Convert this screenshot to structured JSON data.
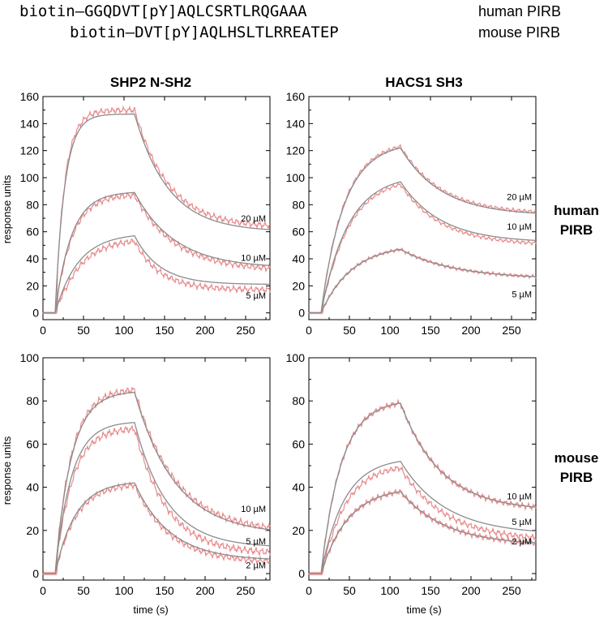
{
  "header": {
    "peptides": [
      {
        "sequence": "biotin–GGQDVT[pY]AQLCSRTLRQGAAA",
        "species": "human PIRB"
      },
      {
        "sequence": "biotin–DVT[pY]AQLHSLTLRREATEP",
        "species": "mouse PIRB"
      }
    ]
  },
  "columns": [
    "SHP2 N-SH2",
    "HACS1 SH3"
  ],
  "rows": [
    {
      "line1": "human",
      "line2": "PIRB"
    },
    {
      "line1": "mouse",
      "line2": "PIRB"
    }
  ],
  "axis_labels": {
    "ylabel": "response units",
    "xlabel": "time (s)"
  },
  "colors": {
    "data": "#e8898b",
    "fit": "#8c8c8c",
    "axis": "#000000"
  },
  "chart_data": [
    {
      "type": "line",
      "panel": "human PIRB / SHP2 N-SH2",
      "ylabel": "response units",
      "xlim": [
        0,
        280
      ],
      "ylim": [
        -5,
        160
      ],
      "xticks": [
        0,
        50,
        100,
        150,
        200,
        250
      ],
      "yticks": [
        0,
        20,
        40,
        60,
        80,
        100,
        120,
        140,
        160
      ],
      "injection_start": 15,
      "injection_end": 113,
      "series": [
        {
          "label": "20 µM",
          "peak": 147,
          "end": 60,
          "kon": 0.085,
          "koff": 0.024,
          "data_offset": 3,
          "label_y": 70,
          "noise": 2.5
        },
        {
          "label": "10 µM",
          "peak": 89,
          "end": 33,
          "kon": 0.05,
          "koff": 0.02,
          "data_offset": -2,
          "label_y": 41,
          "noise": 2.5
        },
        {
          "label": "5 µM",
          "peak": 57,
          "end": 21,
          "kon": 0.035,
          "koff": 0.032,
          "data_offset": -4,
          "label_y": 13,
          "noise": 2.5
        }
      ]
    },
    {
      "type": "line",
      "panel": "human PIRB / HACS1 SH3",
      "xlim": [
        0,
        280
      ],
      "ylim": [
        -5,
        160
      ],
      "xticks": [
        0,
        50,
        100,
        150,
        200,
        250
      ],
      "yticks": [
        0,
        20,
        40,
        60,
        80,
        100,
        120,
        140,
        160
      ],
      "injection_start": 15,
      "injection_end": 113,
      "series": [
        {
          "label": "20 µM",
          "peak": 122,
          "end": 72,
          "kon": 0.035,
          "koff": 0.02,
          "data_offset": 1,
          "label_y": 86,
          "noise": 1.5
        },
        {
          "label": "10 µM",
          "peak": 97,
          "end": 52,
          "kon": 0.03,
          "koff": 0.02,
          "data_offset": -2,
          "label_y": 64,
          "noise": 1.5
        },
        {
          "label": "5 µM",
          "peak": 47,
          "end": 25,
          "kon": 0.026,
          "koff": 0.015,
          "data_offset": 0,
          "label_y": 14,
          "noise": 1.5
        }
      ]
    },
    {
      "type": "line",
      "panel": "mouse PIRB / SHP2 N-SH2",
      "ylabel": "response units",
      "xlabel": "time (s)",
      "xlim": [
        0,
        280
      ],
      "ylim": [
        -3,
        100
      ],
      "xticks": [
        0,
        50,
        100,
        150,
        200,
        250
      ],
      "yticks": [
        0,
        20,
        40,
        60,
        80,
        100
      ],
      "injection_start": 15,
      "injection_end": 113,
      "series": [
        {
          "label": "10 µM",
          "peak": 84,
          "end": 18,
          "kon": 0.05,
          "koff": 0.02,
          "data_offset": 1,
          "label_y": 30,
          "noise": 1.8
        },
        {
          "label": "5 µM",
          "peak": 70,
          "end": 12,
          "kon": 0.05,
          "koff": 0.025,
          "data_offset": -3,
          "label_y": 15,
          "noise": 1.8
        },
        {
          "label": "2 µM",
          "peak": 42,
          "end": 6,
          "kon": 0.04,
          "koff": 0.023,
          "data_offset": -1,
          "label_y": 4,
          "noise": 1.6
        }
      ]
    },
    {
      "type": "line",
      "panel": "mouse PIRB / HACS1 SH3",
      "xlabel": "time (s)",
      "xlim": [
        0,
        280
      ],
      "ylim": [
        -3,
        100
      ],
      "xticks": [
        0,
        50,
        100,
        150,
        200,
        250
      ],
      "yticks": [
        0,
        20,
        40,
        60,
        80,
        100
      ],
      "injection_start": 15,
      "injection_end": 113,
      "series": [
        {
          "label": "10 µM",
          "peak": 79,
          "end": 29,
          "kon": 0.04,
          "koff": 0.02,
          "data_offset": 0,
          "label_y": 36,
          "noise": 1.5
        },
        {
          "label": "5 µM",
          "peak": 52,
          "end": 18,
          "kon": 0.035,
          "koff": 0.018,
          "data_offset": -3,
          "label_y": 24,
          "noise": 1.5
        },
        {
          "label": "2 µM",
          "peak": 38,
          "end": 13,
          "kon": 0.03,
          "koff": 0.018,
          "data_offset": 0,
          "label_y": 15,
          "noise": 1.5
        }
      ]
    }
  ]
}
